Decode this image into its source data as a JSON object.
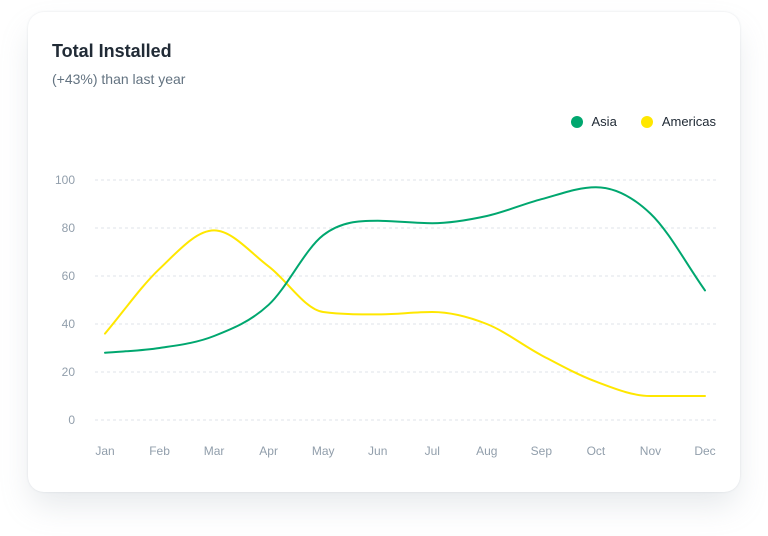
{
  "card": {
    "title": "Total Installed",
    "subtitle": "(+43%) than last year"
  },
  "chart_data": {
    "type": "line",
    "categories": [
      "Jan",
      "Feb",
      "Mar",
      "Apr",
      "May",
      "Jun",
      "Jul",
      "Aug",
      "Sep",
      "Oct",
      "Nov",
      "Dec"
    ],
    "series": [
      {
        "name": "Asia",
        "color": "#00a76f",
        "values": [
          28,
          30,
          35,
          48,
          77,
          83,
          82,
          85,
          92,
          97,
          86,
          54
        ]
      },
      {
        "name": "Americas",
        "color": "#ffe700",
        "values": [
          36,
          63,
          79,
          64,
          45,
          44,
          45,
          40,
          27,
          16,
          10,
          10
        ]
      }
    ],
    "yticks": [
      0,
      20,
      40,
      60,
      80,
      100
    ],
    "ylim": [
      0,
      100
    ],
    "grid": true,
    "legend_position": "top-right",
    "curve": "smooth"
  }
}
